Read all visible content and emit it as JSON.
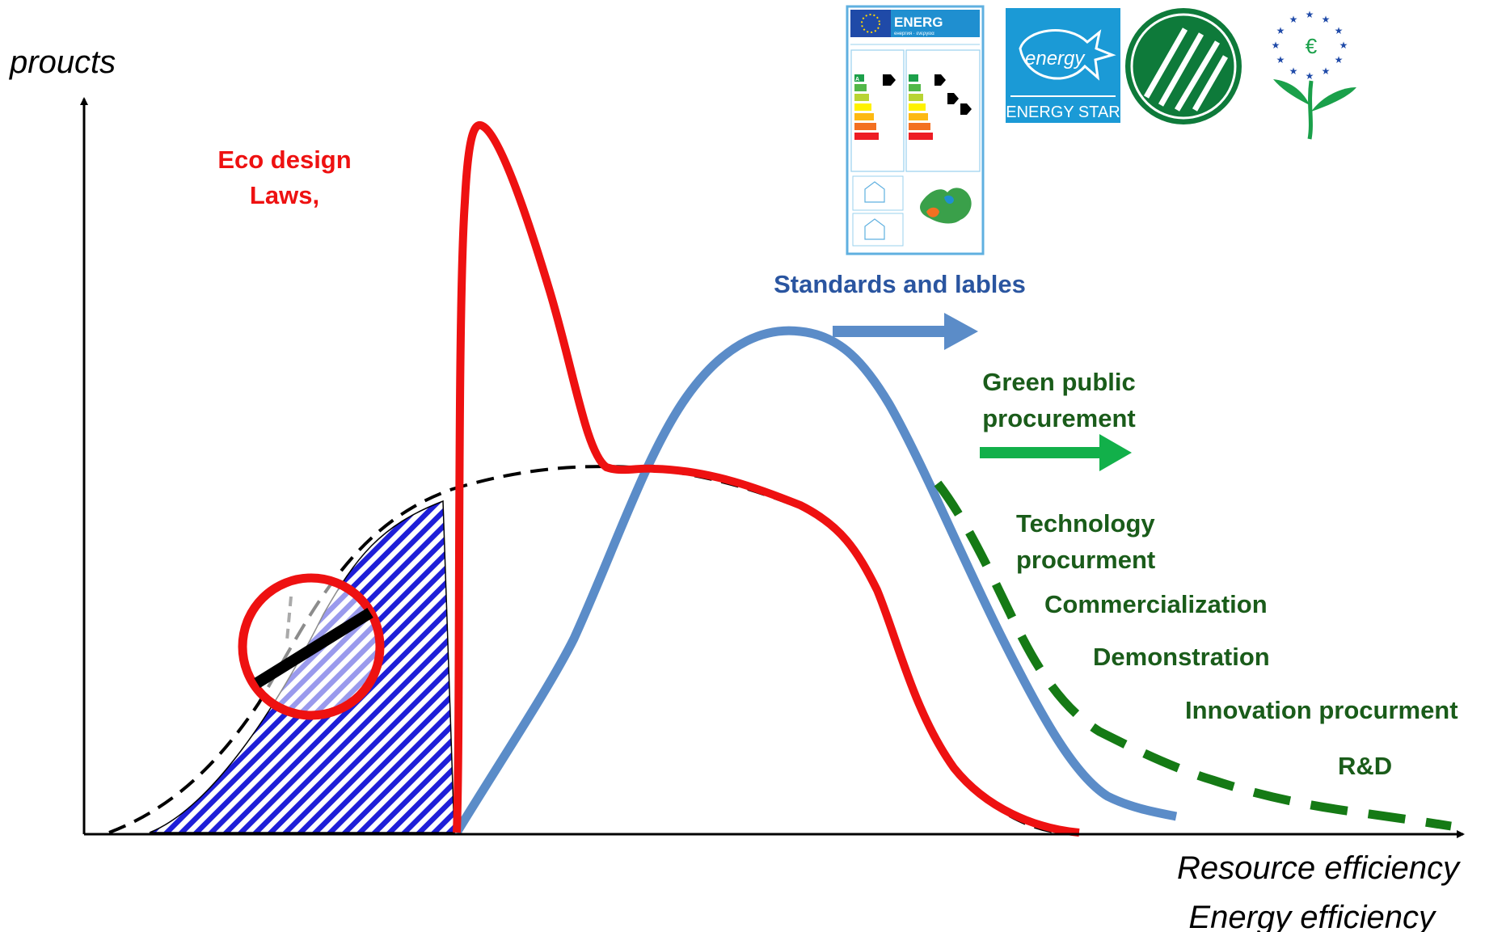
{
  "axes": {
    "y_label": "proucts",
    "x_label_line1": "Resource efficiency",
    "x_label_line2": "Energy efficiency"
  },
  "labels": {
    "eco_design_line1": "Eco design",
    "eco_design_line2": "Laws,",
    "standards": "Standards and lables",
    "green_line1": "Green public",
    "green_line2": "procurement",
    "tech_line1": "Technology",
    "tech_line2": "procurment",
    "commercialization": "Commercialization",
    "demonstration": "Demonstration",
    "innovation": "Innovation procurment",
    "rd": "R&D"
  },
  "logos": {
    "energy_label_title": "ENERG",
    "energy_label_subtitle": "енергия · ενεργεια",
    "energy_label_classes": [
      "A",
      "B",
      "C",
      "D",
      "E",
      "F",
      "G"
    ],
    "energy_star_script": "energy",
    "energy_star_text": "ENERGY STAR"
  },
  "colors": {
    "red_curve": "#ee1111",
    "blue_curve": "#5b8cc8",
    "green_dash": "#157a15",
    "hatch": "#1f1fd8",
    "eco_text": "#ee1111",
    "standards_text": "#2a55a0",
    "green_text": "#1a5c1a",
    "green_arrow": "#12b04a",
    "energy_star_bg": "#1b9ad6"
  }
}
